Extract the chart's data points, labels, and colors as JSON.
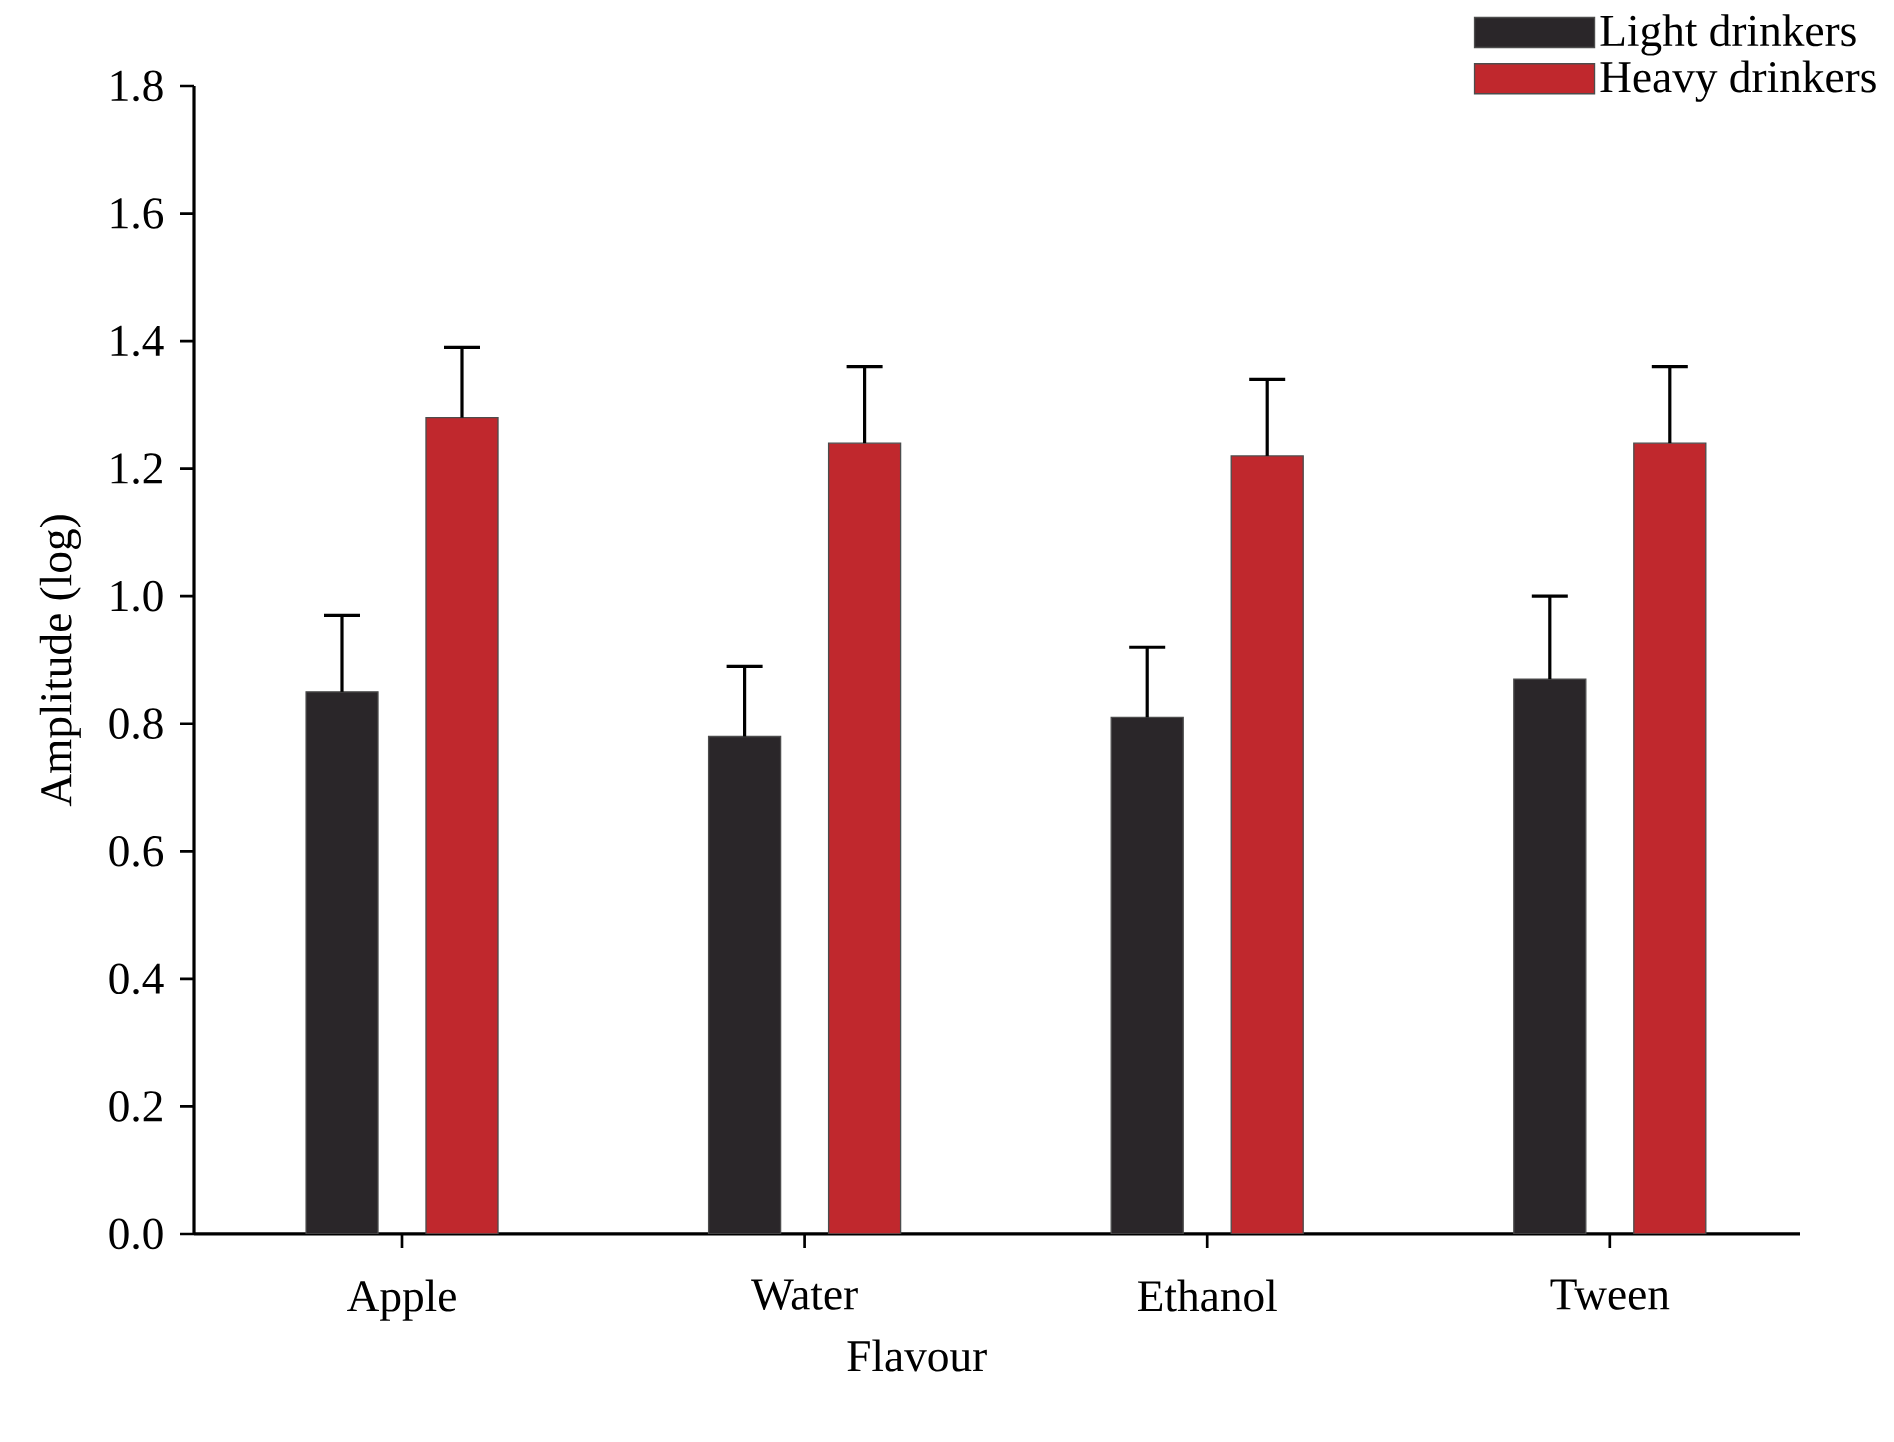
{
  "chart_data": {
    "type": "bar",
    "xlabel": "Flavour",
    "ylabel": "Amplitude (log)",
    "categories": [
      "Apple",
      "Water",
      "Ethanol",
      "Tween"
    ],
    "series": [
      {
        "name": "Light drinkers",
        "color": "#2a2629",
        "values": [
          0.85,
          0.78,
          0.81,
          0.87
        ],
        "errors": [
          [
            0.85,
            0.97
          ],
          [
            0.78,
            0.89
          ],
          [
            0.81,
            0.92
          ],
          [
            0.87,
            1.0
          ]
        ]
      },
      {
        "name": "Heavy drinkers",
        "color": "#c0282d",
        "values": [
          1.28,
          1.24,
          1.22,
          1.24
        ],
        "errors": [
          [
            1.28,
            1.39
          ],
          [
            1.24,
            1.36
          ],
          [
            1.22,
            1.34
          ],
          [
            1.24,
            1.36
          ]
        ]
      }
    ],
    "ylim": [
      0,
      1.8
    ],
    "yticks": [
      {
        "value": 0,
        "label": "0.0"
      },
      {
        "value": 0.2,
        "label": "0.2"
      },
      {
        "value": 0.4,
        "label": "0.4"
      },
      {
        "value": 0.6,
        "label": "0.6"
      },
      {
        "value": 0.8,
        "label": "0.8"
      },
      {
        "value": 1.0,
        "label": "1.0"
      },
      {
        "value": 1.2,
        "label": "1.2"
      },
      {
        "value": 1.4,
        "label": "1.4"
      },
      {
        "value": 1.6,
        "label": "1.6"
      },
      {
        "value": 1.8,
        "label": "1.8"
      }
    ],
    "grid": false,
    "legend": "top right"
  }
}
